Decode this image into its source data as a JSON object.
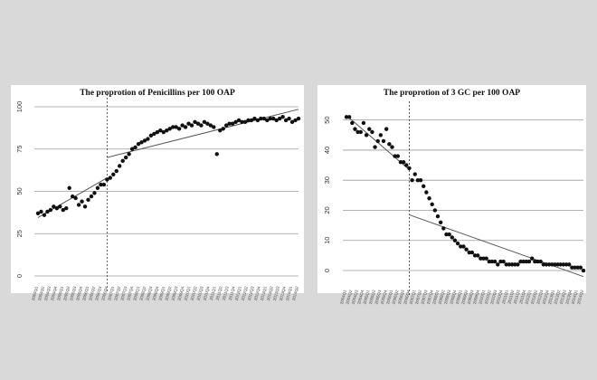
{
  "chart_data": [
    {
      "type": "scatter",
      "title": "The proprotion of Penicillins per 100 OAP",
      "xlabel": "",
      "ylabel": "",
      "ylim": [
        0,
        100
      ],
      "yticks": [
        "0",
        "25",
        "50",
        "75",
        "100"
      ],
      "grid": "horizontal",
      "n_points": 84,
      "intervention_index": 22,
      "x_tick_labels": [
        "2004Q1",
        "2004Q2",
        "2004Q3",
        "2004Q4",
        "2005Q1",
        "2005Q2",
        "2005Q3",
        "2005Q4",
        "2006Q1",
        "2006Q2",
        "2006Q3",
        "2006Q4",
        "2007Q1",
        "2007Q2",
        "2007Q3",
        "2007Q4",
        "2008Q1",
        "2008Q2",
        "2008Q3",
        "2008Q4",
        "2009Q1",
        "2009Q2",
        "2009Q3",
        "2009Q4",
        "2010Q1",
        "2010Q2",
        "2010Q3",
        "2010Q4",
        "2011Q1",
        "2011Q2",
        "2011Q3",
        "2011Q4",
        "2012Q1",
        "2012Q2",
        "2012Q3",
        "2012Q4",
        "2013Q1",
        "2013Q2",
        "2013Q3",
        "2013Q4",
        "2014Q1",
        "2014Q2"
      ],
      "series": [
        {
          "values": [
            37,
            38,
            36,
            38,
            39,
            41,
            40,
            41,
            39,
            40,
            52,
            47,
            46,
            42,
            44,
            41,
            45,
            47,
            49,
            52,
            54,
            54,
            57,
            58,
            60,
            62,
            65,
            68,
            70,
            72,
            75,
            76,
            78,
            79,
            80,
            81,
            83,
            84,
            85,
            86,
            85,
            86,
            87,
            88,
            88,
            87,
            89,
            88,
            90,
            89,
            91,
            90,
            89,
            91,
            90,
            89,
            88,
            72,
            86,
            87,
            89,
            90,
            90,
            91,
            92,
            91,
            91,
            92,
            92,
            93,
            92,
            93,
            93,
            92,
            93,
            93,
            92,
            93,
            94,
            92,
            93,
            91,
            92,
            93
          ]
        }
      ],
      "trend_lines": [
        {
          "x": [
            0,
            22
          ],
          "y": [
            34.5,
            58.0
          ]
        },
        {
          "x": [
            22,
            83
          ],
          "y": [
            70.0,
            98.5
          ]
        }
      ]
    },
    {
      "type": "scatter",
      "title": "The proprotion of 3 GC per 100 OAP",
      "xlabel": "",
      "ylabel": "",
      "ylim": [
        -3,
        52
      ],
      "yticks": [
        "0",
        "10",
        "20",
        "30",
        "40",
        "50"
      ],
      "grid": "horizontal",
      "n_points": 84,
      "intervention_index": 22,
      "x_tick_labels": [
        "2004Q1",
        "2004Q2",
        "2004Q3",
        "2004Q4",
        "2005Q1",
        "2005Q2",
        "2005Q3",
        "2005Q4",
        "2006Q1",
        "2006Q2",
        "2006Q3",
        "2006Q4",
        "2007Q1",
        "2007Q2",
        "2007Q3",
        "2007Q4",
        "2008Q1",
        "2008Q2",
        "2008Q3",
        "2008Q4",
        "2009Q1",
        "2009Q2",
        "2009Q3",
        "2009Q4",
        "2010Q1",
        "2010Q2",
        "2010Q3",
        "2010Q4",
        "2011Q1",
        "2011Q2",
        "2011Q3",
        "2011Q4",
        "2012Q1",
        "2012Q2",
        "2012Q3",
        "2012Q4",
        "2013Q1",
        "2013Q2",
        "2013Q3",
        "2013Q4",
        "2014Q1",
        "2014Q2"
      ],
      "series": [
        {
          "values": [
            51,
            51,
            49,
            47,
            46,
            46,
            49,
            45,
            47,
            46,
            41,
            43,
            45,
            43,
            47,
            42,
            41,
            38,
            38,
            36,
            36,
            35,
            34,
            30,
            32,
            30,
            30,
            28,
            26,
            24,
            22,
            20,
            18,
            16,
            14,
            12,
            12,
            11,
            10,
            9,
            8,
            8,
            7,
            6,
            6,
            5,
            5,
            4,
            4,
            4,
            3,
            3,
            3,
            2,
            3,
            3,
            2,
            2,
            2,
            2,
            2,
            3,
            3,
            3,
            3,
            4,
            3,
            3,
            3,
            2,
            2,
            2,
            2,
            2,
            2,
            2,
            2,
            2,
            2,
            1,
            1,
            1,
            1,
            0
          ]
        }
      ],
      "trend_lines": [
        {
          "x": [
            0,
            22
          ],
          "y": [
            51.5,
            33.5
          ]
        },
        {
          "x": [
            22,
            83
          ],
          "y": [
            18.5,
            -2.0
          ]
        }
      ]
    }
  ]
}
